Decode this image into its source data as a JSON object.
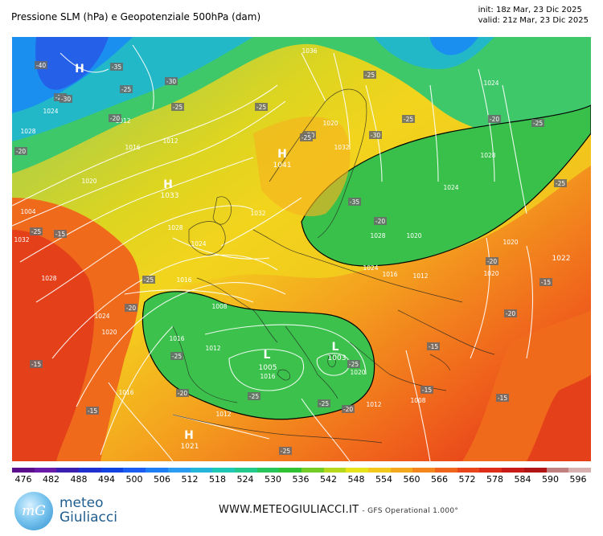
{
  "title": "Pressione SLM (hPa) e Geopotenziale 500hPa (dam)",
  "init": "init: 18z Mar, 23 Dic 2025",
  "valid": "valid: 21z Mar, 23 Dic 2025",
  "centers": [
    {
      "letter": "H",
      "value": ""
    },
    {
      "letter": "H",
      "value": "1041"
    },
    {
      "letter": "H",
      "value": "1033"
    },
    {
      "letter": "L",
      "value": "1005"
    },
    {
      "letter": "L",
      "value": "1003"
    },
    {
      "letter": "H",
      "value": "1021"
    },
    {
      "letter": "",
      "value": "1022"
    }
  ],
  "isobar_labels": [
    "1024",
    "1012",
    "1028",
    "1016",
    "1004",
    "1032",
    "1028",
    "1024",
    "1016",
    "1020",
    "1012",
    "1008",
    "1012",
    "1016",
    "1020",
    "1024",
    "1028",
    "1032",
    "1036",
    "1032",
    "1028",
    "1024",
    "1020",
    "1016",
    "1012",
    "1020",
    "1020",
    "1024",
    "1028",
    "1024",
    "1020",
    "1016",
    "1012",
    "1008",
    "1016",
    "1012",
    "1020"
  ],
  "temp_labels": [
    "-40",
    "-35",
    "-30",
    "-25",
    "-25",
    "-20",
    "-30",
    "-25",
    "-20",
    "-25",
    "-30",
    "-25",
    "-25",
    "-35",
    "-30",
    "-25",
    "-20",
    "-25",
    "-25",
    "-20",
    "-15",
    "-25",
    "-20",
    "-15",
    "-15",
    "-15",
    "-15",
    "-25",
    "-25",
    "-25",
    "-25",
    "-25",
    "-20",
    "-20",
    "-25",
    "-20",
    "-15",
    "-20",
    "-15"
  ],
  "scale": {
    "labels": [
      "476",
      "482",
      "488",
      "494",
      "500",
      "506",
      "512",
      "518",
      "524",
      "530",
      "536",
      "542",
      "548",
      "554",
      "560",
      "566",
      "572",
      "578",
      "584",
      "590",
      "596"
    ],
    "colors": [
      "#5a0e8c",
      "#6a1aa8",
      "#3a1fb0",
      "#1f2fd0",
      "#1242e0",
      "#1a5df0",
      "#1f7ef5",
      "#2b9cf0",
      "#23b6d8",
      "#1fc8b4",
      "#22c98a",
      "#28c65a",
      "#31c234",
      "#72cc24",
      "#b6d81c",
      "#e8e41c",
      "#f2c81c",
      "#f4a81e",
      "#f4861e",
      "#f0641c",
      "#e8461a",
      "#dd2c18",
      "#c81a16",
      "#b01414",
      "#c08080",
      "#d8b0b0"
    ]
  },
  "brand": {
    "line1": "meteo",
    "line2": "Giuliacci",
    "logo": "mG"
  },
  "website": "WWW.METEOGIULIACCI.IT",
  "model": "- GFS Operational 1.000°"
}
